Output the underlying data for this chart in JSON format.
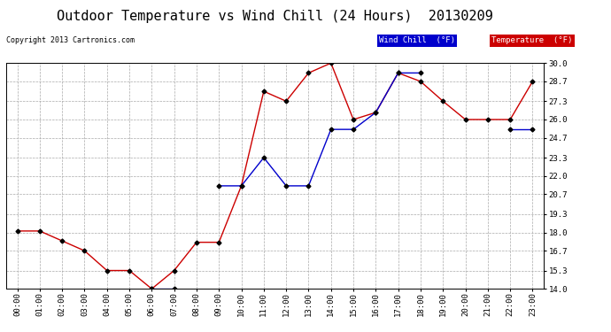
{
  "title": "Outdoor Temperature vs Wind Chill (24 Hours)  20130209",
  "copyright": "Copyright 2013 Cartronics.com",
  "hours": [
    "00:00",
    "01:00",
    "02:00",
    "03:00",
    "04:00",
    "05:00",
    "06:00",
    "07:00",
    "08:00",
    "09:00",
    "10:00",
    "11:00",
    "12:00",
    "13:00",
    "14:00",
    "15:00",
    "16:00",
    "17:00",
    "18:00",
    "19:00",
    "20:00",
    "21:00",
    "22:00",
    "23:00"
  ],
  "temperature": [
    18.1,
    18.1,
    17.4,
    16.7,
    15.3,
    15.3,
    14.0,
    15.3,
    17.3,
    17.3,
    21.3,
    28.0,
    27.3,
    29.3,
    30.0,
    26.0,
    26.5,
    29.3,
    28.7,
    27.3,
    26.0,
    26.0,
    26.0,
    28.7
  ],
  "wind_chill": [
    null,
    null,
    null,
    null,
    null,
    null,
    14.0,
    14.0,
    null,
    21.3,
    21.3,
    23.3,
    21.3,
    21.3,
    25.3,
    25.3,
    26.5,
    29.3,
    29.3,
    null,
    null,
    null,
    25.3,
    25.3
  ],
  "temp_color": "#cc0000",
  "wind_chill_color": "#0000cc",
  "bg_color": "#ffffff",
  "plot_bg_color": "#ffffff",
  "grid_color": "#aaaaaa",
  "ylim": [
    14.0,
    30.0
  ],
  "yticks": [
    14.0,
    15.3,
    16.7,
    18.0,
    19.3,
    20.7,
    22.0,
    23.3,
    24.7,
    26.0,
    27.3,
    28.7,
    30.0
  ],
  "legend_wind_chill_bg": "#0000cc",
  "legend_temp_bg": "#cc0000",
  "legend_wind_chill_text": "Wind Chill  (°F)",
  "legend_temp_text": "Temperature  (°F)",
  "title_fontsize": 11,
  "copyright_fontsize": 6,
  "tick_fontsize": 6.5,
  "legend_fontsize": 6.5,
  "marker": "D",
  "marker_size": 2.5,
  "marker_color": "#000000",
  "line_width": 1.0
}
